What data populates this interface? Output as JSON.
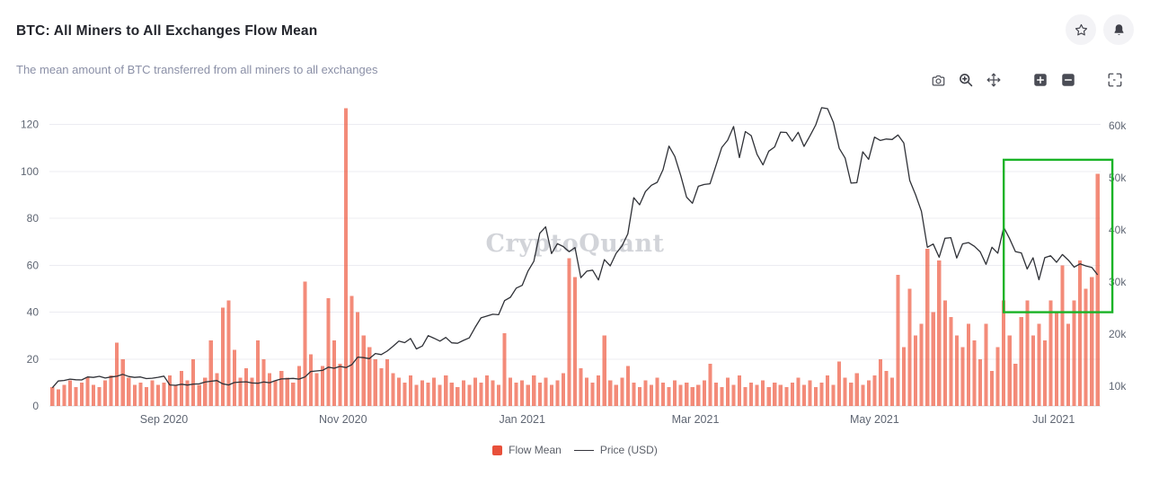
{
  "header": {
    "title": "BTC: All Miners to All Exchanges Flow Mean",
    "subtitle": "The mean amount of BTC transferred from all miners to all exchanges"
  },
  "header_icons": [
    "star-icon",
    "bell-icon"
  ],
  "toolbar_icons": [
    "camera-icon",
    "zoom-magnifier-icon",
    "pan-move-icon",
    "zoom-in-icon",
    "zoom-out-icon",
    "reset-zoom-icon"
  ],
  "watermark": "CryptoQuant",
  "legend": {
    "flow_label": "Flow Mean",
    "price_label": "Price (USD)"
  },
  "colors": {
    "bar": "#ee5a40",
    "bar_opacity": 0.7,
    "price_line": "#2f3137",
    "grid": "#ececf1",
    "axis_line": "#dcdce2",
    "tick_text": "#5f6673",
    "annotation": "#1ab327",
    "watermark": "#c3c6cd",
    "legend_swatch": "#e8503a"
  },
  "chart_data": {
    "type": "bar",
    "note": "combo chart: Flow Mean bars (left axis, BTC) + Price line (right axis, USD); x is daily time sampled every 2 days",
    "x_start": "2020-07-25",
    "x_step_days": 2,
    "title": "BTC: All Miners to All Exchanges Flow Mean",
    "xlabel": "",
    "ylabel_left": "Flow Mean (BTC)",
    "ylabel_right": "Price (USD)",
    "left_axis": {
      "ticks": [
        0,
        20,
        40,
        60,
        80,
        100,
        120
      ],
      "range": [
        0,
        131
      ]
    },
    "right_axis": {
      "ticks": [
        10000,
        20000,
        30000,
        40000,
        50000,
        60000
      ],
      "labels": [
        "10k",
        "20k",
        "30k",
        "40k",
        "50k",
        "60k"
      ],
      "range": [
        6200,
        65200
      ]
    },
    "x_ticks": [
      {
        "index": 19,
        "label": "Sep 2020"
      },
      {
        "index": 49.5,
        "label": "Nov 2020"
      },
      {
        "index": 80,
        "label": "Jan 2021"
      },
      {
        "index": 109.5,
        "label": "Mar 2021"
      },
      {
        "index": 140,
        "label": "May 2021"
      },
      {
        "index": 170.5,
        "label": "Jul 2021"
      }
    ],
    "annotation_box": {
      "x0": 162,
      "x1": 180.5,
      "y0": 40,
      "y1": 105
    },
    "series": [
      {
        "name": "Flow Mean",
        "type": "bar",
        "axis": "left",
        "values": [
          8,
          7,
          9,
          11,
          8,
          10,
          12,
          9,
          8,
          11,
          13,
          27,
          20,
          12,
          9,
          10,
          8,
          11,
          9,
          10,
          13,
          9,
          15,
          11,
          20,
          9,
          12,
          28,
          14,
          42,
          45,
          24,
          12,
          16,
          12,
          28,
          20,
          14,
          11,
          15,
          12,
          10,
          17,
          53,
          22,
          14,
          17,
          46,
          28,
          18,
          127,
          47,
          40,
          30,
          25,
          20,
          16,
          20,
          14,
          12,
          10,
          13,
          9,
          11,
          10,
          12,
          9,
          13,
          10,
          8,
          11,
          9,
          12,
          10,
          13,
          11,
          9,
          31,
          12,
          10,
          11,
          9,
          13,
          10,
          12,
          9,
          11,
          14,
          63,
          55,
          16,
          12,
          10,
          13,
          30,
          11,
          9,
          12,
          17,
          10,
          8,
          11,
          9,
          12,
          10,
          8,
          11,
          9,
          10,
          8,
          9,
          11,
          18,
          10,
          8,
          12,
          9,
          13,
          8,
          10,
          9,
          11,
          8,
          10,
          9,
          8,
          10,
          12,
          9,
          11,
          8,
          10,
          13,
          9,
          19,
          12,
          10,
          14,
          9,
          11,
          13,
          20,
          15,
          12,
          56,
          25,
          50,
          30,
          35,
          67,
          40,
          62,
          45,
          38,
          30,
          25,
          35,
          28,
          20,
          35,
          15,
          25,
          45,
          30,
          18,
          38,
          45,
          30,
          35,
          28,
          45,
          40,
          60,
          35,
          45,
          62,
          50,
          55,
          99
        ]
      },
      {
        "name": "Price (USD)",
        "type": "line",
        "axis": "right",
        "values": [
          9700,
          11000,
          11100,
          11350,
          11240,
          11200,
          11780,
          11680,
          11890,
          11570,
          11780,
          11910,
          12280,
          11860,
          11680,
          11770,
          11470,
          11530,
          11710,
          11930,
          10240,
          10170,
          10370,
          10220,
          10400,
          10440,
          10790,
          10950,
          11080,
          10460,
          10240,
          10700,
          10790,
          10840,
          10620,
          10570,
          10800,
          10670,
          11060,
          11390,
          11430,
          11500,
          11360,
          11760,
          12820,
          12930,
          13030,
          13650,
          13440,
          13800,
          13560,
          14130,
          15590,
          15480,
          15290,
          16280,
          16070,
          16720,
          17650,
          18660,
          18370,
          19160,
          17150,
          17720,
          19700,
          19200,
          18650,
          19360,
          18320,
          18240,
          18800,
          19270,
          21310,
          23130,
          23470,
          23820,
          23730,
          26440,
          27080,
          28840,
          29370,
          32120,
          33990,
          39370,
          40600,
          35470,
          37370,
          36820,
          35830,
          36630,
          30830,
          32100,
          32280,
          30410,
          34300,
          33110,
          35520,
          36940,
          39250,
          46200,
          44850,
          47380,
          48580,
          49160,
          51580,
          56100,
          54120,
          50460,
          46310,
          45140,
          48400,
          48750,
          48880,
          52380,
          55870,
          57250,
          59870,
          53900,
          58910,
          58120,
          54530,
          52510,
          55140,
          55950,
          58800,
          58730,
          57060,
          58760,
          56050,
          58080,
          60200,
          63500,
          63310,
          60680,
          55680,
          53800,
          49000,
          49080,
          55030,
          53570,
          57830,
          57200,
          57470,
          57380,
          58250,
          56700,
          49500,
          46760,
          43580,
          36690,
          37300,
          34770,
          38400,
          38530,
          34620,
          37340,
          37580,
          36880,
          35800,
          33400,
          36690,
          35550,
          40520,
          38340,
          35850,
          35600,
          32510,
          34660,
          30450,
          34680,
          35040,
          33800,
          35290,
          34220,
          32870,
          33500,
          33100,
          32820,
          31380
        ]
      }
    ]
  }
}
